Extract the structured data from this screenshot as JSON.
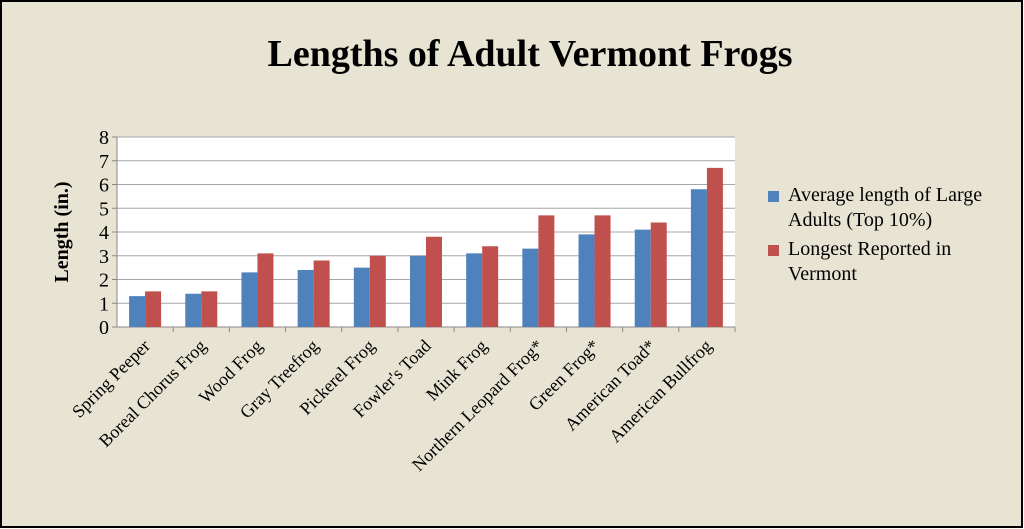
{
  "chart_data": {
    "type": "bar",
    "title": "Lengths of Adult Vermont Frogs",
    "y_label": "Length (in.)",
    "categories": [
      "Spring Peeper",
      "Boreal Chorus Frog",
      "Wood Frog",
      "Gray Treefrog",
      "Pickerel Frog",
      "Fowler's Toad",
      "Mink Frog",
      "Northern Leopard Frog*",
      "Green Frog*",
      "American Toad*",
      "American Bullfrog"
    ],
    "series": [
      {
        "name": "Average length of Large Adults (Top 10%)",
        "color": "#4f81bd",
        "values": [
          1.3,
          1.4,
          2.3,
          2.4,
          2.5,
          3.0,
          3.1,
          3.3,
          3.9,
          4.1,
          5.8
        ]
      },
      {
        "name": "Longest Reported in Vermont",
        "color": "#c0504d",
        "values": [
          1.5,
          1.5,
          3.1,
          2.8,
          3.0,
          3.8,
          3.4,
          4.7,
          4.7,
          4.4,
          6.7
        ]
      }
    ],
    "ylim": [
      0,
      8
    ],
    "yticks": [
      0,
      1,
      2,
      3,
      4,
      5,
      6,
      7,
      8
    ],
    "grid": true,
    "legend": "right"
  }
}
